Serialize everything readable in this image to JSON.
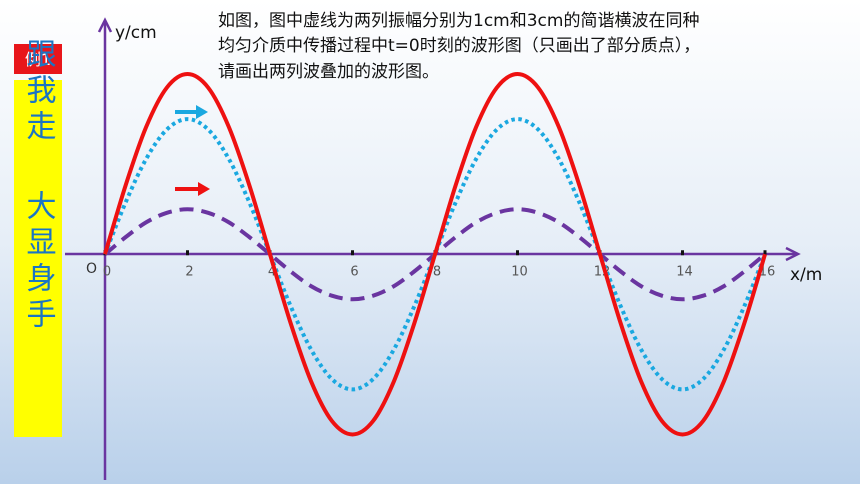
{
  "chart_data": {
    "type": "line",
    "title": [
      "如图，图中虚线为两列振幅分别为1cm和3cm的简谐横波在同种",
      "均匀介质中传播过程中t=0时刻的波形图（只画出了部分质点），",
      "请画出两列波叠加的波形图。"
    ],
    "annotations": [
      "例1",
      "跟我走",
      "大显身手",
      "O"
    ],
    "x_label": "x/m",
    "y_label": "y/cm",
    "x": [
      0,
      0.5,
      1,
      1.5,
      2,
      2.5,
      3,
      3.5,
      4,
      4.5,
      5,
      5.5,
      6,
      6.5,
      7,
      7.5,
      8,
      8.5,
      9,
      9.5,
      10,
      10.5,
      11,
      11.5,
      12,
      12.5,
      13,
      13.5,
      14,
      14.5,
      15,
      15.5,
      16
    ],
    "series": [
      {
        "color": "#6a35a0",
        "style": "dashed",
        "values": [
          0,
          0.38,
          0.71,
          0.92,
          1,
          0.92,
          0.71,
          0.38,
          0,
          -0.38,
          -0.71,
          -0.92,
          -1,
          -0.92,
          -0.71,
          -0.38,
          0,
          0.38,
          0.71,
          0.92,
          1,
          0.92,
          0.71,
          0.38,
          0,
          -0.38,
          -0.71,
          -0.92,
          -1,
          -0.92,
          -0.71,
          -0.38,
          0
        ]
      },
      {
        "color": "#1aa8e0",
        "style": "dotted",
        "values": [
          0,
          1.15,
          2.12,
          2.77,
          3,
          2.77,
          2.12,
          1.15,
          0,
          -1.15,
          -2.12,
          -2.77,
          -3,
          -2.77,
          -2.12,
          -1.15,
          0,
          1.15,
          2.12,
          2.77,
          3,
          2.77,
          2.12,
          1.15,
          0,
          -1.15,
          -2.12,
          -2.77,
          -3,
          -2.77,
          -2.12,
          -1.15,
          0
        ]
      },
      {
        "color": "#ee1111",
        "style": "solid",
        "values": [
          0,
          1.53,
          2.83,
          3.7,
          4,
          3.7,
          2.83,
          1.53,
          0,
          -1.53,
          -2.83,
          -3.7,
          -4,
          -3.7,
          -2.83,
          -1.53,
          0,
          1.53,
          2.83,
          3.7,
          4,
          3.7,
          2.83,
          1.53,
          0,
          -1.53,
          -2.83,
          -3.7,
          -4,
          -3.7,
          -2.83,
          -1.53,
          0
        ]
      }
    ],
    "xlim": [
      0,
      16
    ],
    "xticks": [
      0,
      2,
      4,
      6,
      8,
      10,
      12,
      14,
      16
    ],
    "ylim": [
      -5.1,
      5.2
    ]
  }
}
